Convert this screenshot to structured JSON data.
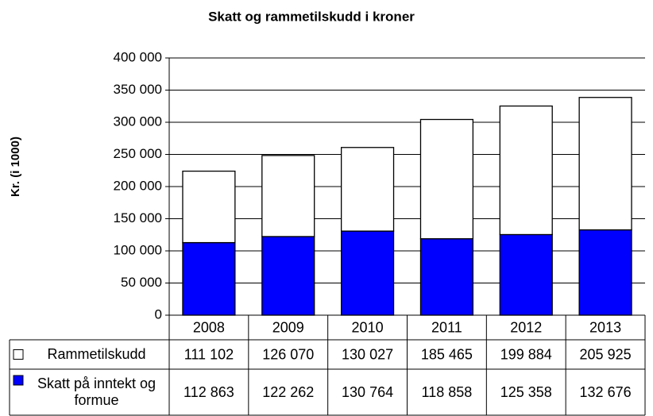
{
  "chart_data": {
    "type": "bar",
    "stacked": true,
    "title": "Skatt og rammetilskudd i kroner",
    "y_label": "Kr. (i 1000)",
    "categories": [
      "2008",
      "2009",
      "2010",
      "2011",
      "2012",
      "2013"
    ],
    "series": [
      {
        "name": "Rammetilskudd",
        "color": "#ffffff",
        "values": [
          111102,
          126070,
          130027,
          185465,
          199884,
          205925
        ],
        "value_labels": [
          "111 102",
          "126 070",
          "130 027",
          "185 465",
          "199 884",
          "205 925"
        ]
      },
      {
        "name": "Skatt på inntekt og formue",
        "color": "#0000ff",
        "values": [
          112863,
          122262,
          130764,
          118858,
          125358,
          132676
        ],
        "value_labels": [
          "112 863",
          "122 262",
          "130 764",
          "118 858",
          "125 358",
          "132 676"
        ]
      }
    ],
    "ylim": [
      0,
      400000
    ],
    "yticks": [
      0,
      {
        "value": 50000,
        "label": "50 000"
      },
      {
        "value": 100000,
        "label": "100 000"
      },
      {
        "value": 150000,
        "label": "150 000"
      },
      {
        "value": 200000,
        "label": "200 000"
      },
      {
        "value": 250000,
        "label": "250 000"
      },
      {
        "value": 300000,
        "label": "300 000"
      },
      {
        "value": 350000,
        "label": "350 000"
      },
      {
        "value": 400000,
        "label": "400 000"
      }
    ],
    "grid": true,
    "data_table": true
  }
}
